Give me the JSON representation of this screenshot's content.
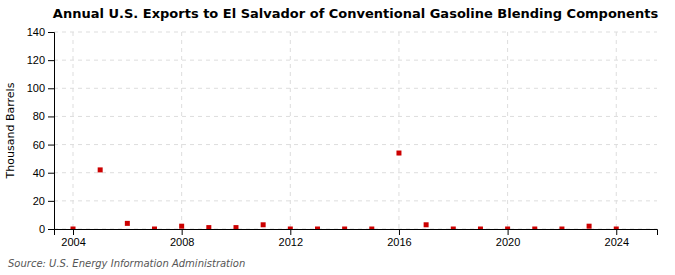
{
  "chart_data": {
    "type": "scatter",
    "title": "Annual U.S. Exports to El Salvador of Conventional Gasoline Blending Components",
    "ylabel": "Thousand Barrels",
    "annotations": [
      "Source: U.S. Energy Information Administration"
    ],
    "x": [
      2004,
      2005,
      2006,
      2007,
      2008,
      2009,
      2010,
      2011,
      2012,
      2013,
      2014,
      2015,
      2016,
      2017,
      2018,
      2019,
      2020,
      2021,
      2022,
      2023,
      2024
    ],
    "values": [
      0,
      42,
      4,
      0,
      2,
      1,
      1,
      3,
      0,
      0,
      0,
      0,
      54,
      3,
      0,
      0,
      0,
      0,
      0,
      2,
      0
    ],
    "color": "#cc0000",
    "marker": "square",
    "xlim": [
      2003.3,
      2025.5
    ],
    "ylim": [
      0,
      140
    ],
    "xticks": [
      2004,
      2008,
      2012,
      2016,
      2020,
      2024
    ],
    "yticks": [
      0,
      20,
      40,
      60,
      80,
      100,
      120,
      140
    ],
    "grid": true
  }
}
